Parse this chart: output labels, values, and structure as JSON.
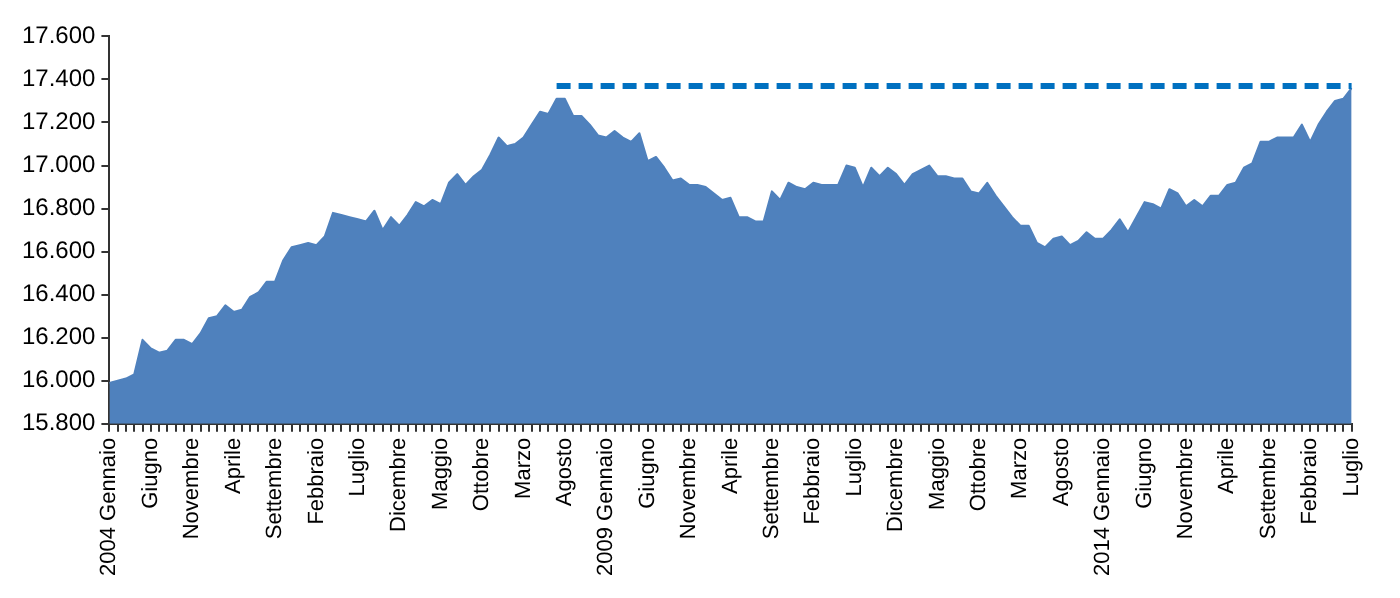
{
  "chart_data": {
    "type": "area",
    "categories": [
      "2004 Gennaio",
      null,
      null,
      null,
      null,
      "Giugno",
      null,
      null,
      null,
      null,
      "Novembre",
      null,
      null,
      null,
      null,
      "Aprile",
      null,
      null,
      null,
      null,
      "Settembre",
      null,
      null,
      null,
      null,
      "Febbraio",
      null,
      null,
      null,
      null,
      "Luglio",
      null,
      null,
      null,
      null,
      "Dicembre",
      null,
      null,
      null,
      null,
      "Maggio",
      null,
      null,
      null,
      null,
      "Ottobre",
      null,
      null,
      null,
      null,
      "Marzo",
      null,
      null,
      null,
      null,
      "Agosto",
      null,
      null,
      null,
      null,
      "2009 Gennaio",
      null,
      null,
      null,
      null,
      "Giugno",
      null,
      null,
      null,
      null,
      "Novembre",
      null,
      null,
      null,
      null,
      "Aprile",
      null,
      null,
      null,
      null,
      "Settembre",
      null,
      null,
      null,
      null,
      "Febbraio",
      null,
      null,
      null,
      null,
      "Luglio",
      null,
      null,
      null,
      null,
      "Dicembre",
      null,
      null,
      null,
      null,
      "Maggio",
      null,
      null,
      null,
      null,
      "Ottobre",
      null,
      null,
      null,
      null,
      "Marzo",
      null,
      null,
      null,
      null,
      "Agosto",
      null,
      null,
      null,
      null,
      "2014 Gennaio",
      null,
      null,
      null,
      null,
      "Giugno",
      null,
      null,
      null,
      null,
      "Novembre",
      null,
      null,
      null,
      null,
      "Aprile",
      null,
      null,
      null,
      null,
      "Settembre",
      null,
      null,
      null,
      null,
      "Febbraio",
      null,
      null,
      null,
      null,
      "Luglio"
    ],
    "series": [
      {
        "color": "#4f81bd",
        "values": [
          15990,
          16000,
          16010,
          16030,
          16190,
          16150,
          16130,
          16140,
          16190,
          16190,
          16170,
          16220,
          16290,
          16300,
          16350,
          16320,
          16330,
          16390,
          16410,
          16460,
          16460,
          16560,
          16620,
          16630,
          16640,
          16630,
          16670,
          16780,
          16770,
          16760,
          16750,
          16740,
          16790,
          16700,
          16760,
          16720,
          16770,
          16830,
          16810,
          16840,
          16820,
          16920,
          16960,
          16910,
          16950,
          16980,
          17050,
          17130,
          17090,
          17100,
          17130,
          17190,
          17250,
          17240,
          17310,
          17310,
          17230,
          17230,
          17190,
          17140,
          17130,
          17160,
          17130,
          17110,
          17150,
          17020,
          17040,
          16990,
          16930,
          16940,
          16910,
          16910,
          16900,
          16870,
          16840,
          16850,
          16760,
          16760,
          16740,
          16740,
          16880,
          16840,
          16920,
          16900,
          16890,
          16920,
          16910,
          16910,
          16910,
          17000,
          16990,
          16900,
          16990,
          16950,
          16990,
          16960,
          16910,
          16960,
          16980,
          17000,
          16950,
          16950,
          16940,
          16940,
          16880,
          16870,
          16920,
          16860,
          16810,
          16760,
          16720,
          16720,
          16640,
          16620,
          16660,
          16670,
          16630,
          16650,
          16690,
          16660,
          16660,
          16700,
          16750,
          16690,
          16760,
          16830,
          16820,
          16800,
          16890,
          16870,
          16810,
          16840,
          16810,
          16860,
          16860,
          16910,
          16920,
          16990,
          17010,
          17110,
          17110,
          17130,
          17130,
          17130,
          17190,
          17110,
          17190,
          17250,
          17300,
          17310,
          17360
        ]
      },
      {
        "type": "line",
        "color": "#0070c0",
        "line_style": "dashed",
        "values": [
          null,
          null,
          null,
          null,
          null,
          null,
          null,
          null,
          null,
          null,
          null,
          null,
          null,
          null,
          null,
          null,
          null,
          null,
          null,
          null,
          null,
          null,
          null,
          null,
          null,
          null,
          null,
          null,
          null,
          null,
          null,
          null,
          null,
          null,
          null,
          null,
          null,
          null,
          null,
          null,
          null,
          null,
          null,
          null,
          null,
          null,
          null,
          null,
          null,
          null,
          null,
          null,
          null,
          null,
          17370,
          17370,
          17370,
          17370,
          17370,
          17370,
          17370,
          17370,
          17370,
          17370,
          17370,
          17370,
          17370,
          17370,
          17370,
          17370,
          17370,
          17370,
          17370,
          17370,
          17370,
          17370,
          17370,
          17370,
          17370,
          17370,
          17370,
          17370,
          17370,
          17370,
          17370,
          17370,
          17370,
          17370,
          17370,
          17370,
          17370,
          17370,
          17370,
          17370,
          17370,
          17370,
          17370,
          17370,
          17370,
          17370,
          17370,
          17370,
          17370,
          17370,
          17370,
          17370,
          17370,
          17370,
          17370,
          17370,
          17370,
          17370,
          17370,
          17370,
          17370,
          17370,
          17370,
          17370,
          17370,
          17370,
          17370,
          17370,
          17370,
          17370,
          17370,
          17370,
          17370,
          17370,
          17370,
          17370,
          17370,
          17370,
          17370,
          17370,
          17370,
          17370,
          17370,
          17370,
          17370,
          17370,
          17370,
          17370,
          17370,
          17370,
          17370,
          17370,
          17370,
          17370,
          17370,
          17370,
          17370
        ]
      }
    ],
    "ylim": [
      15800,
      17600
    ],
    "yticks": [
      {
        "value": 15800,
        "label": "15.800"
      },
      {
        "value": 16000,
        "label": "16.000"
      },
      {
        "value": 16200,
        "label": "16.200"
      },
      {
        "value": 16400,
        "label": "16.400"
      },
      {
        "value": 16600,
        "label": "16.600"
      },
      {
        "value": 16800,
        "label": "16.800"
      },
      {
        "value": 17000,
        "label": "17.000"
      },
      {
        "value": 17200,
        "label": "17.200"
      },
      {
        "value": 17400,
        "label": "17.400"
      },
      {
        "value": 17600,
        "label": "17.600"
      }
    ],
    "grid": false,
    "legend": false,
    "marker": "none"
  }
}
